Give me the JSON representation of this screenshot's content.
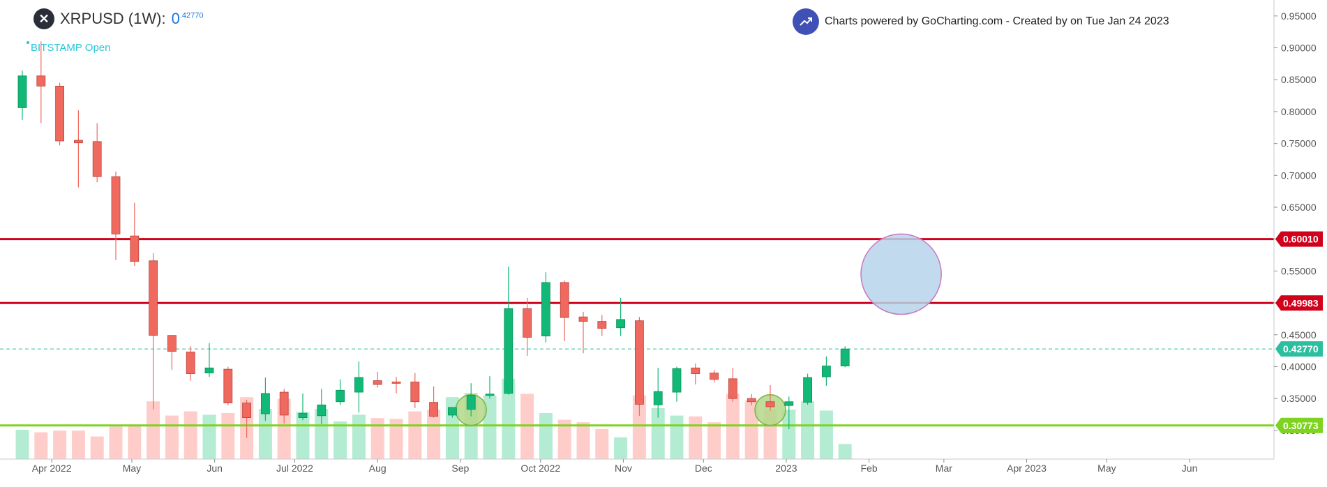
{
  "header": {
    "symbol": "XRPUSD (1W):",
    "price_main": "0",
    "price_sup": ".42770",
    "source_label": "BITSTAMP Open",
    "credit": "Charts powered by GoCharting.com - Created by  on Tue Jan 24 2023"
  },
  "chart_data": {
    "type": "candlestick",
    "x_axis_labels": [
      "Apr 2022",
      "May",
      "Jun",
      "Jul 2022",
      "Aug",
      "Sep",
      "Oct 2022",
      "Nov",
      "Dec",
      "2023",
      "Feb",
      "Mar",
      "Apr 2023",
      "May",
      "Jun"
    ],
    "y_axis_labels": [
      "0.95000",
      "0.90000",
      "0.85000",
      "0.80000",
      "0.75000",
      "0.70000",
      "0.65000",
      "0.60000",
      "0.55000",
      "0.50000",
      "0.45000",
      "0.40000",
      "0.35000",
      "0.30000"
    ],
    "ylim": [
      0.255,
      0.975
    ],
    "candles": [
      {
        "date": "2022-03-21",
        "o": 0.806,
        "h": 0.864,
        "l": 0.787,
        "c": 0.856,
        "vol": 0.35
      },
      {
        "date": "2022-03-28",
        "o": 0.856,
        "h": 0.91,
        "l": 0.782,
        "c": 0.84,
        "vol": 0.32
      },
      {
        "date": "2022-04-04",
        "o": 0.84,
        "h": 0.845,
        "l": 0.747,
        "c": 0.754,
        "vol": 0.34
      },
      {
        "date": "2022-04-11",
        "o": 0.755,
        "h": 0.802,
        "l": 0.681,
        "c": 0.751,
        "vol": 0.34
      },
      {
        "date": "2022-04-18",
        "o": 0.753,
        "h": 0.782,
        "l": 0.689,
        "c": 0.698,
        "vol": 0.27
      },
      {
        "date": "2022-04-25",
        "o": 0.698,
        "h": 0.706,
        "l": 0.567,
        "c": 0.608,
        "vol": 0.39
      },
      {
        "date": "2022-05-02",
        "o": 0.605,
        "h": 0.657,
        "l": 0.558,
        "c": 0.565,
        "vol": 0.4
      },
      {
        "date": "2022-05-09",
        "o": 0.566,
        "h": 0.578,
        "l": 0.333,
        "c": 0.449,
        "vol": 0.69
      },
      {
        "date": "2022-05-16",
        "o": 0.449,
        "h": 0.448,
        "l": 0.395,
        "c": 0.424,
        "vol": 0.52
      },
      {
        "date": "2022-05-23",
        "o": 0.423,
        "h": 0.432,
        "l": 0.378,
        "c": 0.389,
        "vol": 0.57
      },
      {
        "date": "2022-05-30",
        "o": 0.39,
        "h": 0.437,
        "l": 0.384,
        "c": 0.398,
        "vol": 0.53
      },
      {
        "date": "2022-06-06",
        "o": 0.396,
        "h": 0.4,
        "l": 0.339,
        "c": 0.343,
        "vol": 0.55
      },
      {
        "date": "2022-06-13",
        "o": 0.343,
        "h": 0.348,
        "l": 0.288,
        "c": 0.32,
        "vol": 0.74
      },
      {
        "date": "2022-06-20",
        "o": 0.326,
        "h": 0.383,
        "l": 0.315,
        "c": 0.358,
        "vol": 0.6
      },
      {
        "date": "2022-06-27",
        "o": 0.36,
        "h": 0.365,
        "l": 0.311,
        "c": 0.324,
        "vol": 0.72
      },
      {
        "date": "2022-07-04",
        "o": 0.32,
        "h": 0.358,
        "l": 0.316,
        "c": 0.327,
        "vol": 0.56
      },
      {
        "date": "2022-07-11",
        "o": 0.323,
        "h": 0.365,
        "l": 0.31,
        "c": 0.34,
        "vol": 0.6
      },
      {
        "date": "2022-07-18",
        "o": 0.345,
        "h": 0.38,
        "l": 0.34,
        "c": 0.363,
        "vol": 0.45
      },
      {
        "date": "2022-07-25",
        "o": 0.36,
        "h": 0.408,
        "l": 0.328,
        "c": 0.383,
        "vol": 0.53
      },
      {
        "date": "2022-08-01",
        "o": 0.378,
        "h": 0.392,
        "l": 0.367,
        "c": 0.372,
        "vol": 0.49
      },
      {
        "date": "2022-08-08",
        "o": 0.376,
        "h": 0.384,
        "l": 0.358,
        "c": 0.374,
        "vol": 0.48
      },
      {
        "date": "2022-08-15",
        "o": 0.376,
        "h": 0.39,
        "l": 0.335,
        "c": 0.345,
        "vol": 0.57
      },
      {
        "date": "2022-08-22",
        "o": 0.344,
        "h": 0.369,
        "l": 0.32,
        "c": 0.322,
        "vol": 0.59
      },
      {
        "date": "2022-08-29",
        "o": 0.324,
        "h": 0.332,
        "l": 0.32,
        "c": 0.336,
        "vol": 0.74
      },
      {
        "date": "2022-09-05",
        "o": 0.333,
        "h": 0.374,
        "l": 0.322,
        "c": 0.355,
        "vol": 0.79
      },
      {
        "date": "2022-09-12",
        "o": 0.355,
        "h": 0.385,
        "l": 0.35,
        "c": 0.357,
        "vol": 0.76
      },
      {
        "date": "2022-09-19",
        "o": 0.358,
        "h": 0.557,
        "l": 0.356,
        "c": 0.491,
        "vol": 0.96
      },
      {
        "date": "2022-09-26",
        "o": 0.491,
        "h": 0.508,
        "l": 0.417,
        "c": 0.446,
        "vol": 0.78
      },
      {
        "date": "2022-10-03",
        "o": 0.448,
        "h": 0.548,
        "l": 0.438,
        "c": 0.532,
        "vol": 0.55
      },
      {
        "date": "2022-10-10",
        "o": 0.532,
        "h": 0.535,
        "l": 0.44,
        "c": 0.477,
        "vol": 0.47
      },
      {
        "date": "2022-10-17",
        "o": 0.478,
        "h": 0.486,
        "l": 0.421,
        "c": 0.471,
        "vol": 0.44
      },
      {
        "date": "2022-10-24",
        "o": 0.471,
        "h": 0.481,
        "l": 0.448,
        "c": 0.46,
        "vol": 0.36
      },
      {
        "date": "2022-10-31",
        "o": 0.461,
        "h": 0.508,
        "l": 0.448,
        "c": 0.474,
        "vol": 0.26
      },
      {
        "date": "2022-11-07",
        "o": 0.472,
        "h": 0.478,
        "l": 0.323,
        "c": 0.341,
        "vol": 0.76
      },
      {
        "date": "2022-11-14",
        "o": 0.34,
        "h": 0.398,
        "l": 0.32,
        "c": 0.361,
        "vol": 0.61
      },
      {
        "date": "2022-11-21",
        "o": 0.36,
        "h": 0.4,
        "l": 0.345,
        "c": 0.397,
        "vol": 0.52
      },
      {
        "date": "2022-11-28",
        "o": 0.398,
        "h": 0.405,
        "l": 0.372,
        "c": 0.389,
        "vol": 0.51
      },
      {
        "date": "2022-12-05",
        "o": 0.39,
        "h": 0.395,
        "l": 0.375,
        "c": 0.38,
        "vol": 0.44
      },
      {
        "date": "2022-12-12",
        "o": 0.381,
        "h": 0.398,
        "l": 0.345,
        "c": 0.35,
        "vol": 0.78
      },
      {
        "date": "2022-12-19",
        "o": 0.35,
        "h": 0.357,
        "l": 0.339,
        "c": 0.345,
        "vol": 0.7
      },
      {
        "date": "2022-12-26",
        "o": 0.345,
        "h": 0.371,
        "l": 0.331,
        "c": 0.337,
        "vol": 0.59
      },
      {
        "date": "2023-01-02",
        "o": 0.339,
        "h": 0.353,
        "l": 0.302,
        "c": 0.345,
        "vol": 0.59
      },
      {
        "date": "2023-01-09",
        "o": 0.344,
        "h": 0.389,
        "l": 0.34,
        "c": 0.383,
        "vol": 0.69
      },
      {
        "date": "2023-01-16",
        "o": 0.384,
        "h": 0.416,
        "l": 0.37,
        "c": 0.401,
        "vol": 0.58
      },
      {
        "date": "2023-01-23",
        "o": 0.401,
        "h": 0.432,
        "l": 0.399,
        "c": 0.4277,
        "vol": 0.18
      }
    ],
    "horizontal_lines": [
      {
        "value": 0.6001,
        "label": "0.60010",
        "color": "#d0021b"
      },
      {
        "value": 0.49983,
        "label": "0.49983",
        "color": "#d0021b"
      },
      {
        "value": 0.4277,
        "label": "0.42770",
        "color": "#2bbfa0"
      },
      {
        "value": 0.30773,
        "label": "0.30773",
        "color": "#7ed321"
      }
    ],
    "circles": [
      {
        "date": "2023-02-13",
        "value": 0.545,
        "r_value": 0.063,
        "fill": "#b7d3ea",
        "stroke": "#c777c2"
      },
      {
        "date": "2022-09-05",
        "value": 0.332,
        "r_value": 0.024,
        "fill": "#b5d88a",
        "stroke": "#7ab542"
      },
      {
        "date": "2022-12-26",
        "value": 0.332,
        "r_value": 0.024,
        "fill": "#b5d88a",
        "stroke": "#7ab542"
      }
    ],
    "colors": {
      "up": "#12b876",
      "down": "#f0695f",
      "up_vol": "#b3ecd2",
      "down_vol": "#ffcdc9"
    }
  }
}
